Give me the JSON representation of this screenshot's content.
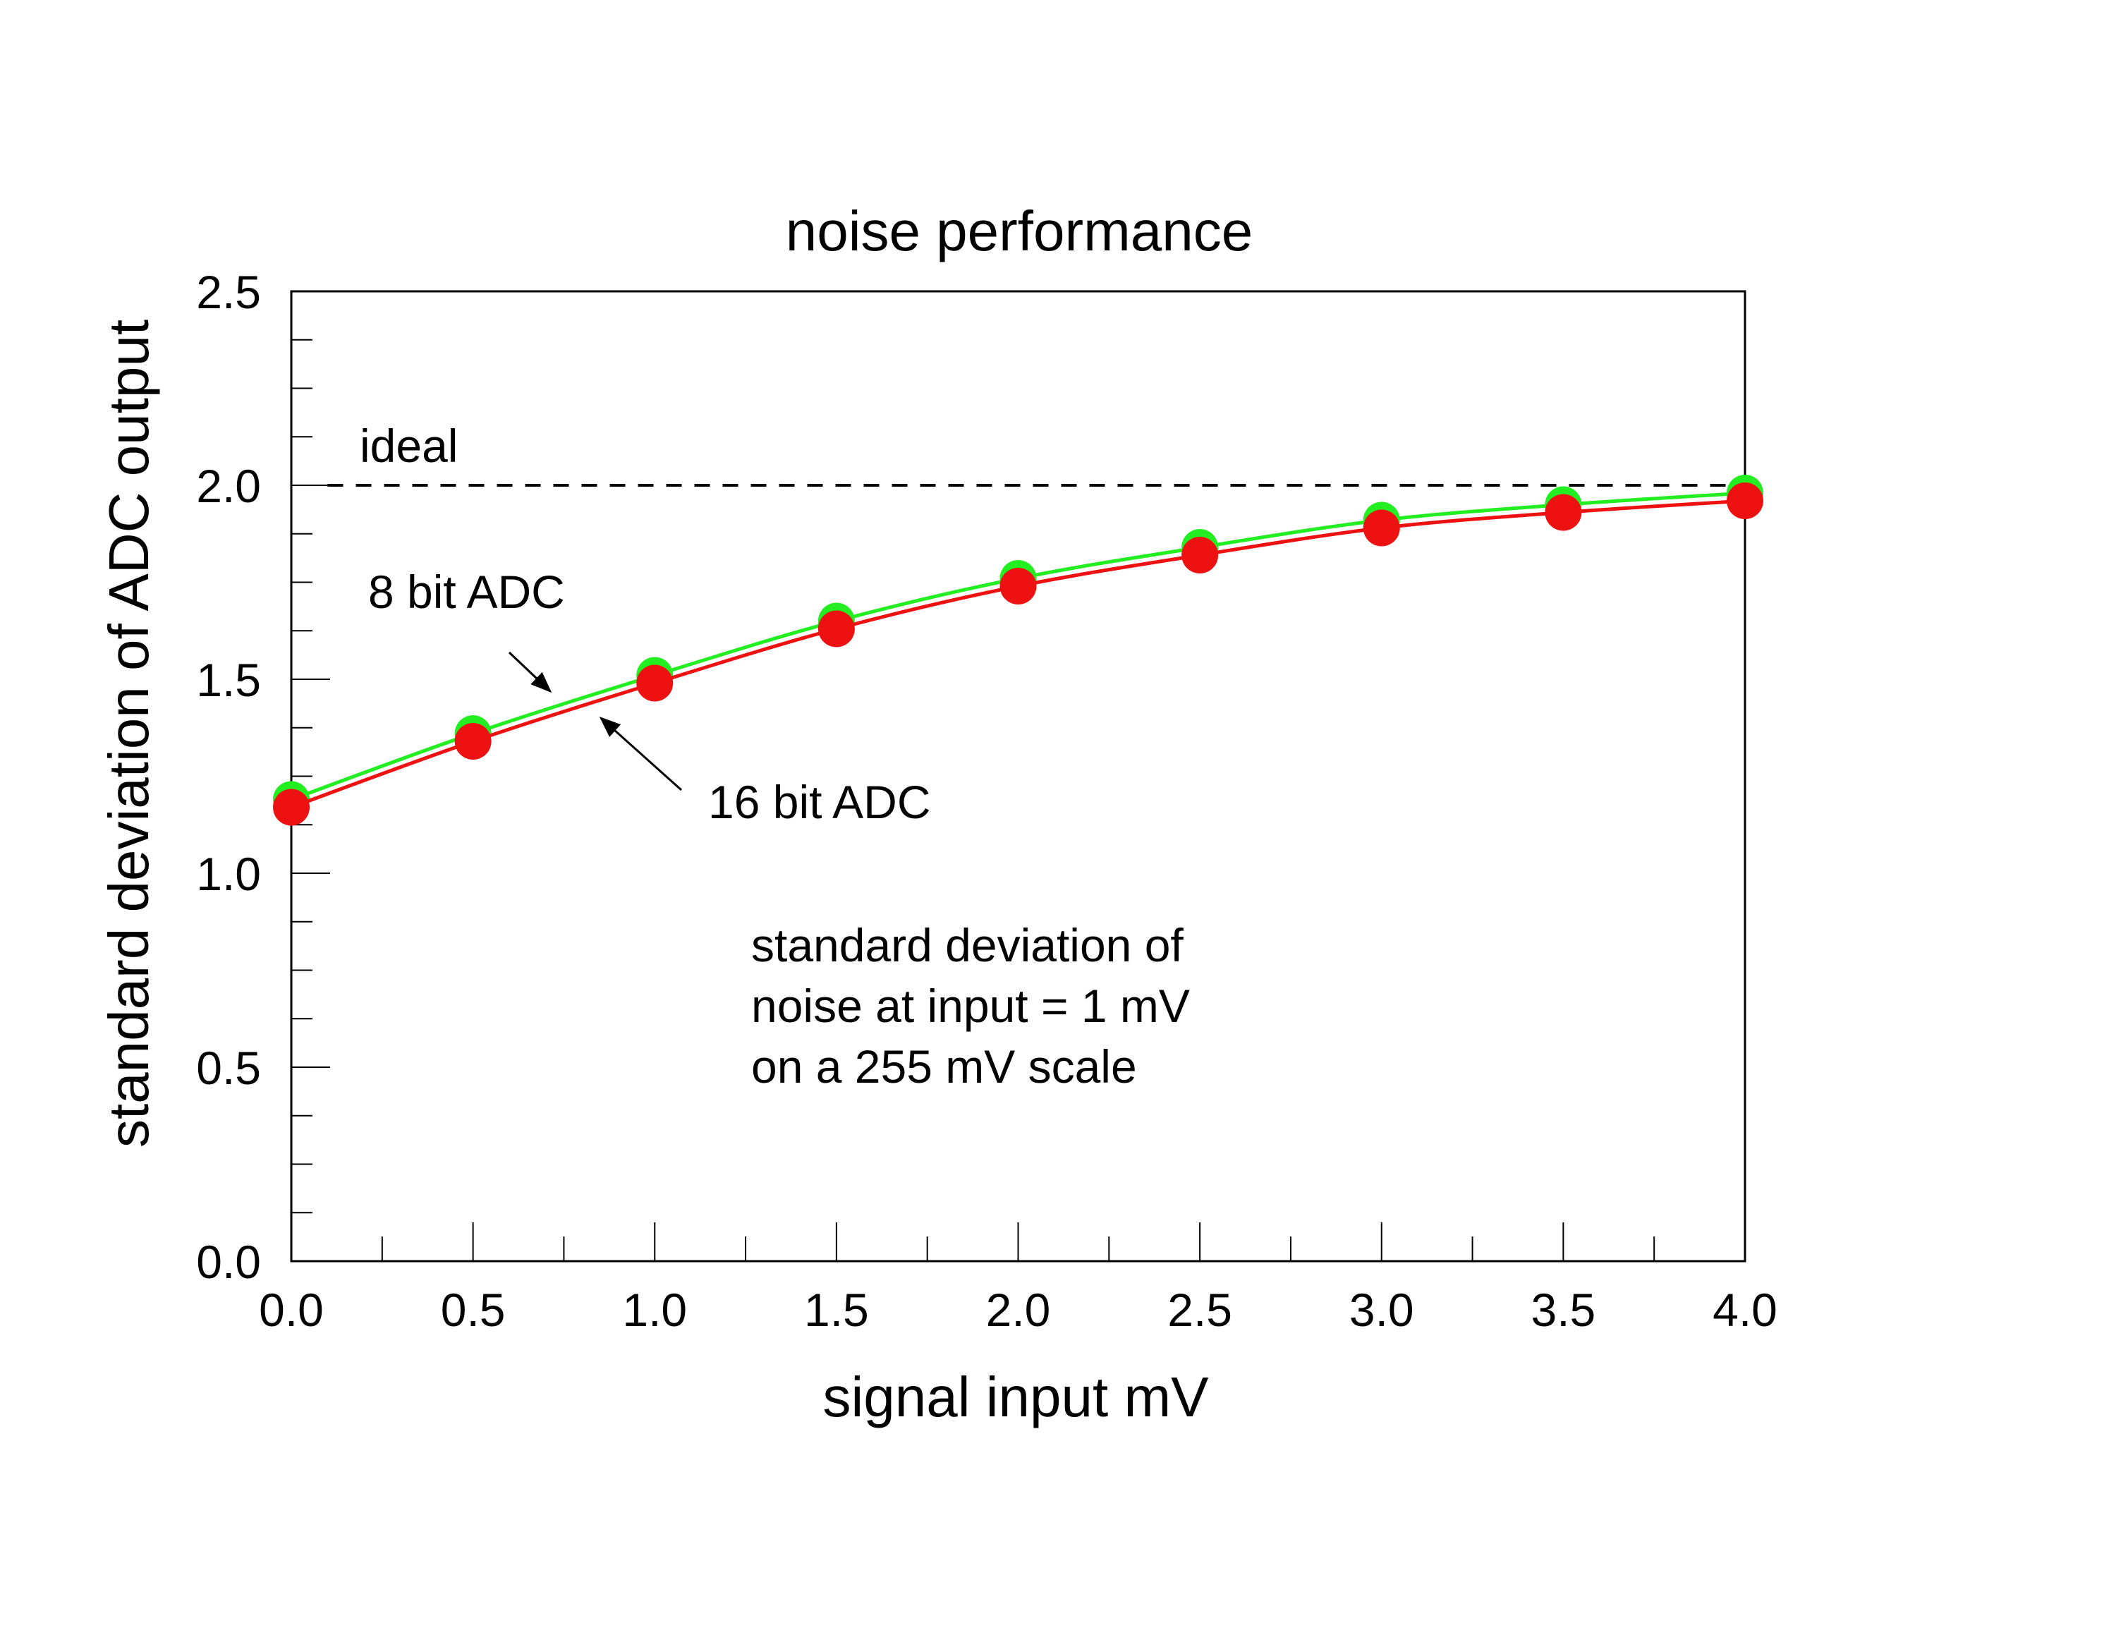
{
  "chart_data": {
    "type": "line",
    "title": "noise performance",
    "xlabel": "signal input mV",
    "ylabel": "standard deviation of ADC output",
    "xlim": [
      0,
      4
    ],
    "ylim": [
      0,
      2.5
    ],
    "x_ticks": [
      "0.0",
      "0.5",
      "1.0",
      "1.5",
      "2.0",
      "2.5",
      "3.0",
      "3.5",
      "4.0"
    ],
    "y_ticks": [
      "0.0",
      "0.5",
      "1.0",
      "1.5",
      "2.0",
      "2.5"
    ],
    "x_tick_values": [
      0,
      0.5,
      1.0,
      1.5,
      2.0,
      2.5,
      3.0,
      3.5,
      4.0
    ],
    "y_tick_values": [
      0,
      0.5,
      1.0,
      1.5,
      2.0,
      2.5
    ],
    "grid": false,
    "x": [
      0,
      0.5,
      1.0,
      1.5,
      2.0,
      2.5,
      3.0,
      3.5,
      4.0
    ],
    "series": [
      {
        "name": "8 bit ADC",
        "color": "#22ee22",
        "values": [
          1.19,
          1.36,
          1.51,
          1.65,
          1.76,
          1.84,
          1.91,
          1.95,
          1.98
        ]
      },
      {
        "name": "16 bit ADC",
        "color": "#ee1111",
        "values": [
          1.17,
          1.34,
          1.49,
          1.63,
          1.74,
          1.82,
          1.89,
          1.93,
          1.96
        ]
      }
    ],
    "reference_line": {
      "label": "ideal",
      "y": 2.0,
      "x_range": [
        0.1,
        4.0
      ],
      "style": "dashed",
      "color": "#000000"
    },
    "annotations": [
      {
        "text_lines": [
          "standard deviation of",
          "noise at input = 1 mV",
          "on a 255 mV scale"
        ]
      }
    ]
  }
}
